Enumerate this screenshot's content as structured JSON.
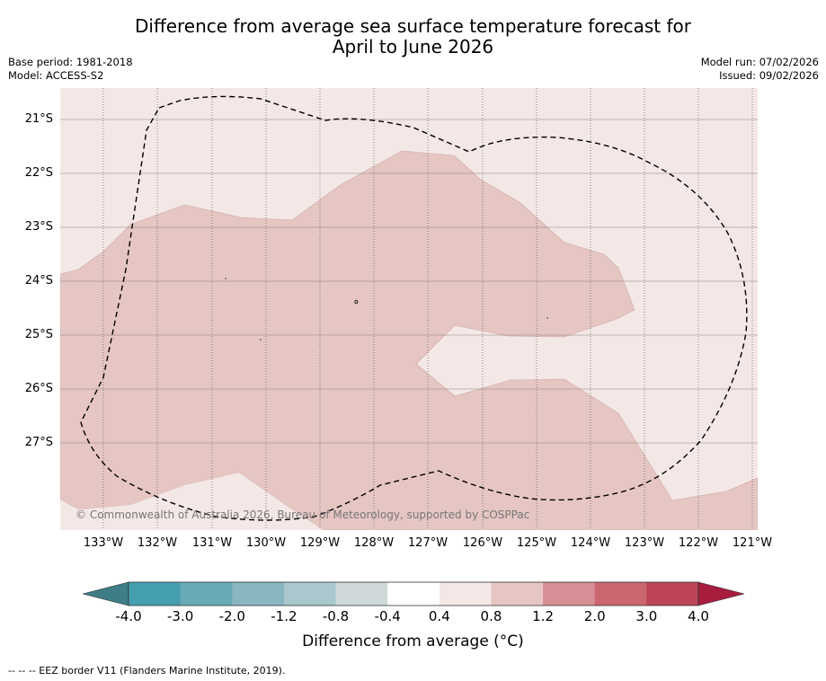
{
  "title_line1": "Difference from average sea surface temperature forecast for",
  "title_line2": "April to June 2026",
  "meta": {
    "base_period": "Base period: 1981-2018",
    "model": "Model: ACCESS-S2",
    "model_run": "Model run: 07/02/2026",
    "issued": "Issued: 09/02/2026"
  },
  "map": {
    "lat_labels": [
      "21°S",
      "22°S",
      "23°S",
      "24°S",
      "25°S",
      "26°S",
      "27°S"
    ],
    "lon_labels": [
      "133°W",
      "132°W",
      "131°W",
      "130°W",
      "129°W",
      "128°W",
      "127°W",
      "126°W",
      "125°W",
      "124°W",
      "123°W",
      "122°W",
      "121°W"
    ],
    "copyright": "© Commonwealth of Australia 2026, Bureau of Meteorology, supported by COSPPac",
    "colors": {
      "light_anomaly": "#f4e8e7",
      "mid_anomaly": "#e6c6c3",
      "ocean_bg": "#f4e8e7"
    }
  },
  "colorbar": {
    "ticks": [
      "-4.0",
      "-3.0",
      "-2.0",
      "-1.2",
      "-0.8",
      "-0.4",
      "0.4",
      "0.8",
      "1.2",
      "2.0",
      "3.0",
      "4.0"
    ],
    "colors": [
      "#3e7c86",
      "#459fb0",
      "#67aab8",
      "#88b7c2",
      "#a9c7cc",
      "#cfd9da",
      "#ffffff",
      "#f4e8e7",
      "#e6c6c3",
      "#d78e95",
      "#ca6670",
      "#bd4356",
      "#a81d3c"
    ],
    "label": "Difference from average (°C)"
  },
  "footer": "--  --  -- EEZ border V11 (Flanders Marine Institute, 2019)."
}
